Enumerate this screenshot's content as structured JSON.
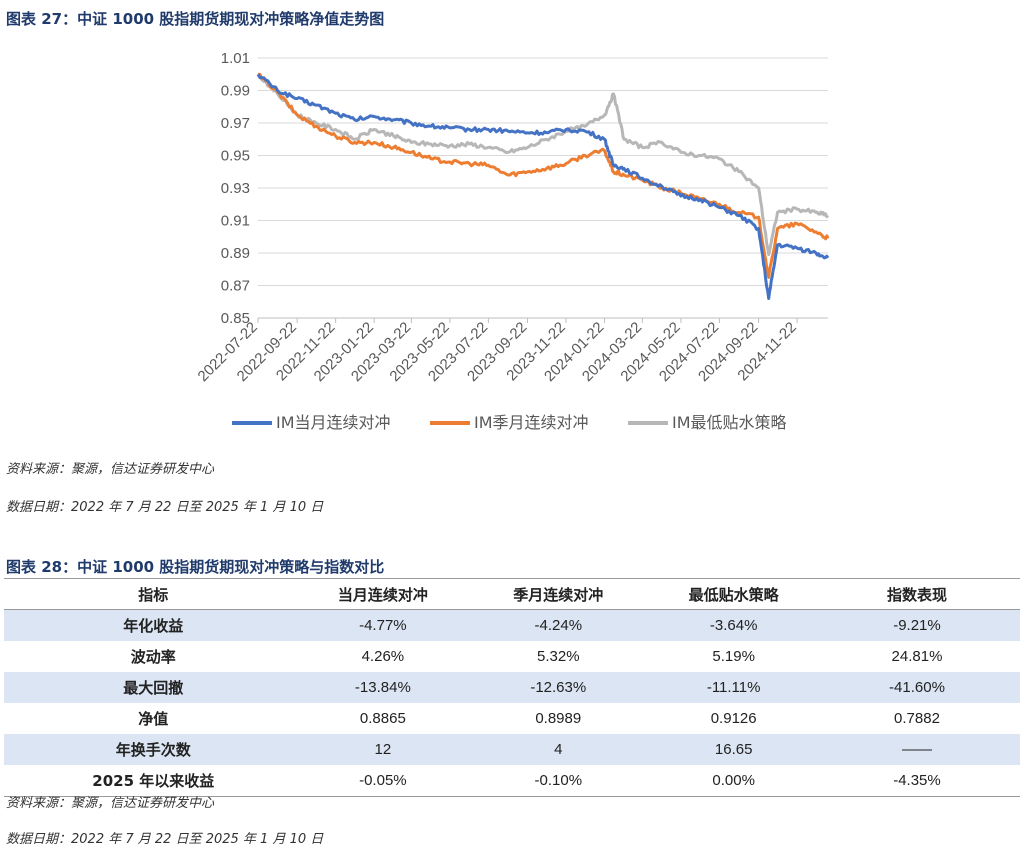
{
  "figure1": {
    "title": "图表 27：中证 1000 股指期货期现对冲策略净值走势图",
    "source": "资料来源：聚源，信达证券研发中心",
    "date_note": "数据日期：2022 年 7 月 22 日至 2025 年 1 月 10 日"
  },
  "chart_data": {
    "type": "line",
    "title": "",
    "xlabel": "",
    "ylabel": "",
    "ylim": [
      0.85,
      1.01
    ],
    "yticks": [
      "1.01",
      "0.99",
      "0.97",
      "0.95",
      "0.93",
      "0.91",
      "0.89",
      "0.87",
      "0.85"
    ],
    "xticks": [
      "2022-07-22",
      "2022-09-22",
      "2022-11-22",
      "2023-01-22",
      "2023-03-22",
      "2023-05-22",
      "2023-07-22",
      "2023-09-22",
      "2023-11-22",
      "2024-01-22",
      "2024-03-22",
      "2024-05-22",
      "2024-07-22",
      "2024-09-22",
      "2024-11-22"
    ],
    "legend_position": "bottom",
    "grid": true,
    "x": [
      "2022-07-22",
      "2022-08-22",
      "2022-09-22",
      "2022-10-22",
      "2022-11-22",
      "2022-12-22",
      "2023-01-22",
      "2023-02-22",
      "2023-03-22",
      "2023-04-22",
      "2023-05-22",
      "2023-06-22",
      "2023-07-22",
      "2023-08-22",
      "2023-09-22",
      "2023-10-22",
      "2023-11-22",
      "2023-12-22",
      "2024-01-22",
      "2024-02-05",
      "2024-02-22",
      "2024-03-22",
      "2024-04-22",
      "2024-05-22",
      "2024-06-22",
      "2024-07-22",
      "2024-08-22",
      "2024-09-22",
      "2024-10-08",
      "2024-10-22",
      "2024-11-22",
      "2024-12-22",
      "2025-01-10"
    ],
    "series": [
      {
        "name": "IM当月连续对冲",
        "color": "#4472c4",
        "values": [
          1.0,
          0.99,
          0.985,
          0.981,
          0.976,
          0.972,
          0.974,
          0.972,
          0.97,
          0.968,
          0.967,
          0.966,
          0.966,
          0.965,
          0.964,
          0.964,
          0.966,
          0.965,
          0.96,
          0.944,
          0.942,
          0.936,
          0.931,
          0.925,
          0.923,
          0.918,
          0.913,
          0.905,
          0.862,
          0.895,
          0.893,
          0.89,
          0.887
        ]
      },
      {
        "name": "IM季月连续对冲",
        "color": "#ed7d31",
        "values": [
          1.0,
          0.989,
          0.975,
          0.968,
          0.962,
          0.958,
          0.958,
          0.955,
          0.952,
          0.948,
          0.946,
          0.945,
          0.944,
          0.938,
          0.94,
          0.942,
          0.945,
          0.95,
          0.953,
          0.94,
          0.938,
          0.935,
          0.93,
          0.927,
          0.923,
          0.92,
          0.915,
          0.912,
          0.875,
          0.905,
          0.908,
          0.903,
          0.899
        ]
      },
      {
        "name": "IM最低贴水策略",
        "color": "#b7b7b7",
        "values": [
          1.0,
          0.988,
          0.975,
          0.97,
          0.966,
          0.96,
          0.966,
          0.962,
          0.958,
          0.957,
          0.956,
          0.957,
          0.955,
          0.952,
          0.955,
          0.96,
          0.965,
          0.968,
          0.975,
          0.988,
          0.96,
          0.955,
          0.958,
          0.952,
          0.95,
          0.948,
          0.94,
          0.93,
          0.889,
          0.915,
          0.917,
          0.915,
          0.913
        ]
      }
    ]
  },
  "figure2": {
    "title": "图表 28：中证 1000 股指期货期现对冲策略与指数对比",
    "headers": [
      "指标",
      "当月连续对冲",
      "季月连续对冲",
      "最低贴水策略",
      "指数表现"
    ],
    "rows": [
      [
        "年化收益",
        "-4.77%",
        "-4.24%",
        "-3.64%",
        "-9.21%"
      ],
      [
        "波动率",
        "4.26%",
        "5.32%",
        "5.19%",
        "24.81%"
      ],
      [
        "最大回撤",
        "-13.84%",
        "-12.63%",
        "-11.11%",
        "-41.60%"
      ],
      [
        "净值",
        "0.8865",
        "0.8989",
        "0.9126",
        "0.7882"
      ],
      [
        "年换手次数",
        "12",
        "4",
        "16.65",
        "——"
      ],
      [
        "2025 年以来收益",
        "-0.05%",
        "-0.10%",
        "0.00%",
        "-4.35%"
      ]
    ],
    "source": "资料来源：聚源，信达证券研发中心",
    "date_note": "数据日期：2022 年 7 月 22 日至 2025 年 1 月 10 日"
  }
}
